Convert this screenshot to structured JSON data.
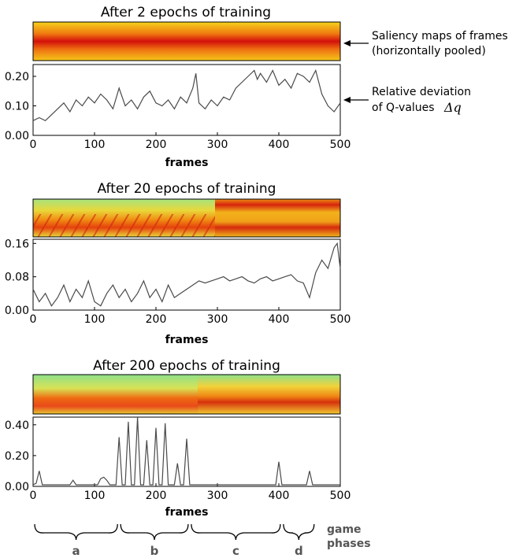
{
  "annotations": {
    "saliency_line1": "Saliency maps of frames",
    "saliency_line2": "(horizontally pooled)",
    "deviation_line1": "Relative deviation",
    "deviation_line2": "of Q-values",
    "deviation_symbol": "Δq"
  },
  "phases": {
    "label": [
      "game",
      "phases"
    ],
    "items": [
      {
        "name": "a",
        "start": 0,
        "end": 140
      },
      {
        "name": "b",
        "start": 140,
        "end": 255
      },
      {
        "name": "c",
        "start": 255,
        "end": 405
      },
      {
        "name": "d",
        "start": 405,
        "end": 460
      }
    ]
  },
  "colors": {
    "line": "#4a4a4a",
    "heatmap_low": "#84e08f",
    "heatmap_mid": "#f3c219",
    "heatmap_high": "#dc1a0c"
  },
  "chart_data": [
    {
      "type": "line",
      "title": "After 2 epochs of training",
      "xlabel": "frames",
      "ylabel": "",
      "xlim": [
        0,
        500
      ],
      "ylim": [
        0,
        0.24
      ],
      "xticks": [
        "0",
        "100",
        "200",
        "300",
        "400",
        "500"
      ],
      "yticks": [
        "0.00",
        "0.10",
        "0.20"
      ],
      "heatmap": "Saliency maps of frames (horizontally pooled)",
      "series": [
        {
          "x": [
            0,
            10,
            20,
            30,
            40,
            50,
            60,
            70,
            80,
            90,
            100,
            110,
            120,
            130,
            140,
            150,
            160,
            170,
            180,
            190,
            200,
            210,
            220,
            230,
            240,
            250,
            260,
            265,
            270,
            280,
            290,
            300,
            310,
            320,
            330,
            340,
            350,
            360,
            365,
            370,
            380,
            390,
            400,
            410,
            420,
            430,
            440,
            450,
            460,
            470,
            480,
            490,
            500
          ],
          "values": [
            0.05,
            0.06,
            0.05,
            0.07,
            0.09,
            0.11,
            0.08,
            0.12,
            0.1,
            0.13,
            0.11,
            0.14,
            0.12,
            0.09,
            0.16,
            0.1,
            0.12,
            0.09,
            0.13,
            0.15,
            0.11,
            0.1,
            0.12,
            0.09,
            0.13,
            0.11,
            0.16,
            0.21,
            0.11,
            0.09,
            0.12,
            0.1,
            0.13,
            0.12,
            0.16,
            0.18,
            0.2,
            0.22,
            0.19,
            0.21,
            0.18,
            0.22,
            0.17,
            0.19,
            0.16,
            0.21,
            0.2,
            0.18,
            0.22,
            0.14,
            0.1,
            0.08,
            0.11
          ]
        }
      ]
    },
    {
      "type": "line",
      "title": "After 20 epochs of training",
      "xlabel": "frames",
      "ylabel": "",
      "xlim": [
        0,
        500
      ],
      "ylim": [
        0,
        0.17
      ],
      "xticks": [
        "0",
        "100",
        "200",
        "300",
        "400",
        "500"
      ],
      "yticks": [
        "0.00",
        "0.08",
        "0.16"
      ],
      "series": [
        {
          "x": [
            0,
            10,
            20,
            30,
            40,
            50,
            60,
            70,
            80,
            90,
            100,
            110,
            120,
            130,
            140,
            150,
            160,
            170,
            180,
            190,
            200,
            210,
            220,
            230,
            240,
            250,
            260,
            270,
            280,
            290,
            300,
            310,
            320,
            330,
            340,
            350,
            360,
            370,
            380,
            390,
            400,
            410,
            420,
            430,
            440,
            450,
            460,
            470,
            480,
            490,
            495,
            500
          ],
          "values": [
            0.05,
            0.02,
            0.04,
            0.01,
            0.03,
            0.06,
            0.02,
            0.05,
            0.03,
            0.07,
            0.02,
            0.01,
            0.04,
            0.06,
            0.03,
            0.05,
            0.02,
            0.04,
            0.07,
            0.03,
            0.05,
            0.02,
            0.06,
            0.03,
            0.04,
            0.05,
            0.06,
            0.07,
            0.065,
            0.07,
            0.075,
            0.08,
            0.07,
            0.075,
            0.08,
            0.07,
            0.065,
            0.075,
            0.08,
            0.07,
            0.075,
            0.08,
            0.085,
            0.07,
            0.065,
            0.03,
            0.09,
            0.12,
            0.1,
            0.15,
            0.16,
            0.1
          ]
        }
      ]
    },
    {
      "type": "line",
      "title": "After 200 epochs of training",
      "xlabel": "frames",
      "ylabel": "",
      "xlim": [
        0,
        500
      ],
      "ylim": [
        0,
        0.45
      ],
      "xticks": [
        "0",
        "100",
        "200",
        "300",
        "400",
        "500"
      ],
      "yticks": [
        "0.00",
        "0.20",
        "0.40"
      ],
      "series": [
        {
          "x": [
            0,
            5,
            10,
            15,
            20,
            60,
            65,
            70,
            105,
            110,
            115,
            120,
            125,
            135,
            140,
            145,
            150,
            155,
            160,
            165,
            170,
            175,
            180,
            185,
            190,
            195,
            200,
            205,
            210,
            215,
            220,
            225,
            230,
            235,
            240,
            245,
            250,
            255,
            260,
            300,
            350,
            395,
            400,
            405,
            410,
            440,
            445,
            450,
            455,
            460,
            500
          ],
          "values": [
            0.01,
            0.02,
            0.1,
            0.01,
            0.01,
            0.01,
            0.04,
            0.01,
            0.01,
            0.05,
            0.06,
            0.04,
            0.01,
            0.01,
            0.32,
            0.01,
            0.01,
            0.42,
            0.01,
            0.01,
            0.45,
            0.01,
            0.01,
            0.3,
            0.01,
            0.01,
            0.38,
            0.01,
            0.01,
            0.41,
            0.01,
            0.01,
            0.01,
            0.15,
            0.01,
            0.01,
            0.31,
            0.01,
            0.01,
            0.01,
            0.01,
            0.01,
            0.16,
            0.01,
            0.01,
            0.01,
            0.01,
            0.1,
            0.01,
            0.01,
            0.01
          ]
        }
      ]
    }
  ]
}
